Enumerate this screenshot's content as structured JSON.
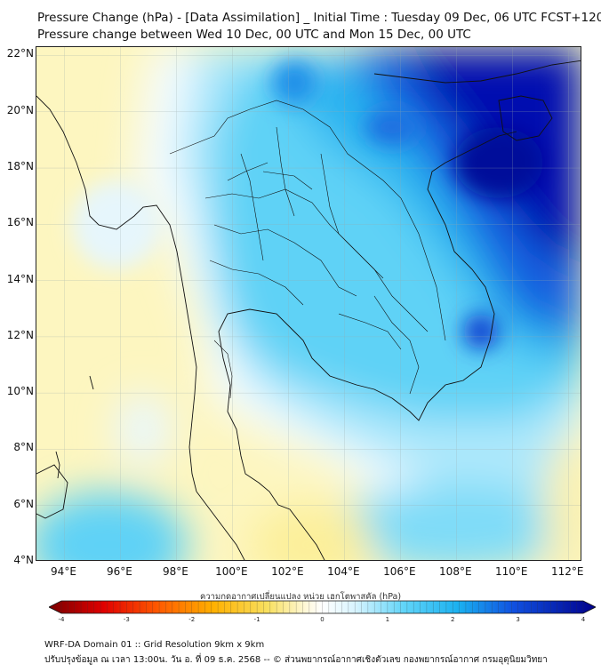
{
  "titles": {
    "line1": "Pressure Change (hPa) - [Data Assimilation] _ Initial Time : Tuesday 09 Dec, 06 UTC FCST+120",
    "line2": "Pressure change between Wed 10 Dec, 00 UTC and Mon 15 Dec, 00 UTC"
  },
  "map": {
    "lat_labels": [
      "22°N",
      "20°N",
      "18°N",
      "16°N",
      "14°N",
      "12°N",
      "10°N",
      "8°N",
      "6°N",
      "4°N"
    ],
    "lon_labels": [
      "94°E",
      "96°E",
      "98°E",
      "100°E",
      "102°E",
      "104°E",
      "106°E",
      "108°E",
      "110°E",
      "112°E"
    ],
    "gridlines": true,
    "lat_range": [
      4,
      22.3
    ],
    "lon_range": [
      93,
      112.5
    ]
  },
  "colorbar": {
    "title": "ความกดอากาศเปลี่ยนแปลง หน่วย เฮกโตพาสคัล (hPa)",
    "ticks": [
      "-4",
      "-3",
      "-2",
      "-1",
      "0",
      "1",
      "2",
      "3",
      "4"
    ],
    "range": [
      -4,
      4
    ],
    "colors": {
      "low": "#7a0000",
      "mid_low": "#f0d020",
      "neutral": "#ffffff",
      "mid_high": "#22c8f0",
      "high": "#00008c"
    }
  },
  "footer": {
    "line1": "WRF-DA Domain 01 :: Grid Resolution 9km x 9km",
    "line2": "ปรับปรุงข้อมูล ณ เวลา 13:00น. วัน อ. ที่ 09 ธ.ค. 2568 -- © ส่วนพยากรณ์อากาศเชิงตัวเลข กองพยากรณ์อากาศ กรมอุตุนิยมวิทยา"
  }
}
